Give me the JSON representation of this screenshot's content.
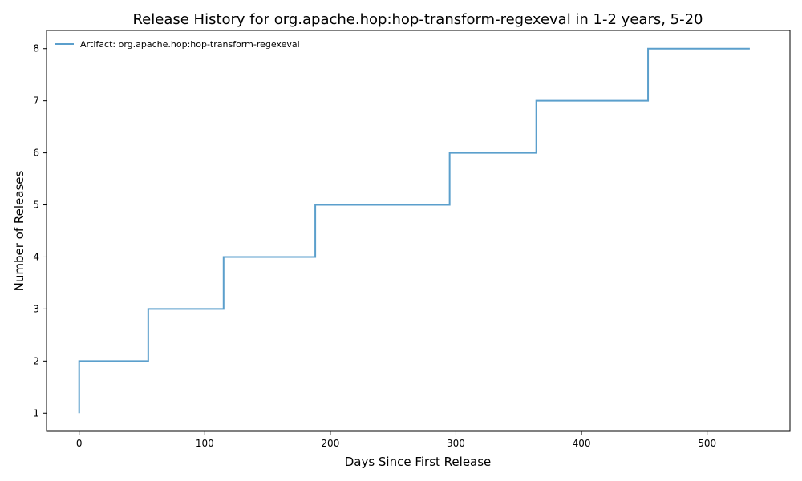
{
  "chart_data": {
    "type": "line",
    "step": true,
    "title": "Release History for org.apache.hop:hop-transform-regexeval in 1-2 years, 5-20",
    "xlabel": "Days Since First Release",
    "ylabel": "Number of Releases",
    "xlim": [
      -26,
      566
    ],
    "ylim": [
      0.65,
      8.35
    ],
    "xticks": [
      0,
      100,
      200,
      300,
      400,
      500
    ],
    "yticks": [
      1,
      2,
      3,
      4,
      5,
      6,
      7,
      8
    ],
    "grid": false,
    "legend_position": "top-left",
    "line_color": "#5b9fcc",
    "series": [
      {
        "name": "Artifact: org.apache.hop:hop-transform-regexeval",
        "x": [
          0,
          0,
          55,
          115,
          188,
          295,
          364,
          453,
          534
        ],
        "y": [
          1,
          2,
          3,
          4,
          5,
          6,
          7,
          8,
          8
        ]
      }
    ]
  }
}
